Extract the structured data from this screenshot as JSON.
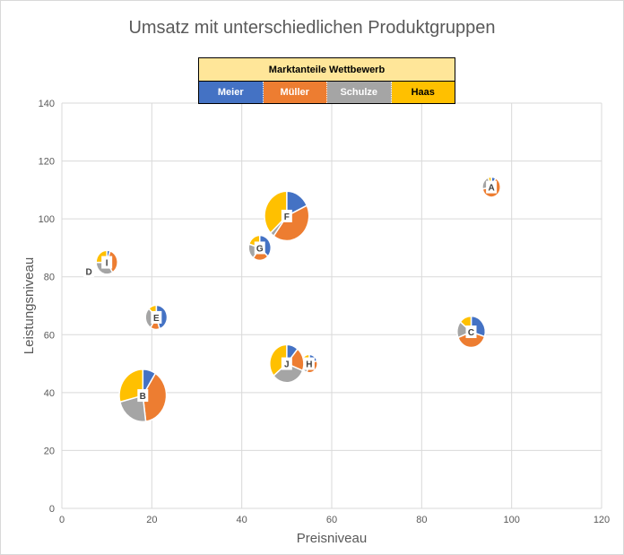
{
  "chart_data": {
    "type": "bubble-pie",
    "title": "Umsatz mit unterschiedlichen Produktgruppen",
    "xlabel": "Preisniveau",
    "ylabel": "Leistungsniveau",
    "xlim": [
      0,
      120
    ],
    "ylim": [
      0,
      140
    ],
    "xticks": [
      0,
      20,
      40,
      60,
      80,
      100,
      120
    ],
    "yticks": [
      0,
      20,
      40,
      60,
      80,
      100,
      120,
      140
    ],
    "grid": true,
    "legend": {
      "title": "Marktanteile Wettbewerb",
      "placement": "top-center",
      "entries": [
        {
          "name": "Meier",
          "color": "#4472c4"
        },
        {
          "name": "Müller",
          "color": "#ed7d31"
        },
        {
          "name": "Schulze",
          "color": "#a5a5a5"
        },
        {
          "name": "Haas",
          "color": "#ffc000"
        }
      ]
    },
    "series_order": [
      "Meier",
      "Müller",
      "Schulze",
      "Haas"
    ],
    "points": [
      {
        "label": "A",
        "x": 95.5,
        "y": 111,
        "size": 3.2,
        "shares": [
          8,
          64,
          22,
          6
        ]
      },
      {
        "label": "B",
        "x": 18,
        "y": 39,
        "size": 21.5,
        "shares": [
          9,
          39,
          23,
          29
        ]
      },
      {
        "label": "C",
        "x": 91,
        "y": 61,
        "size": 7.7,
        "shares": [
          30,
          39,
          17,
          14
        ]
      },
      {
        "label": "D",
        "x": 6,
        "y": 82,
        "size": 1.0,
        "shares": [
          22,
          24,
          26,
          28
        ]
      },
      {
        "label": "E",
        "x": 21,
        "y": 66,
        "size": 4.6,
        "shares": [
          45,
          14,
          29,
          12
        ]
      },
      {
        "label": "F",
        "x": 50,
        "y": 101,
        "size": 19.2,
        "shares": [
          18,
          42,
          3,
          37
        ]
      },
      {
        "label": "G",
        "x": 44,
        "y": 90,
        "size": 4.9,
        "shares": [
          37,
          23,
          20,
          20
        ]
      },
      {
        "label": "H",
        "x": 55,
        "y": 50,
        "size": 2.6,
        "shares": [
          20,
          35,
          20,
          25
        ]
      },
      {
        "label": "I",
        "x": 10,
        "y": 85,
        "size": 4.5,
        "shares": [
          5,
          36,
          34,
          25
        ]
      },
      {
        "label": "J",
        "x": 50,
        "y": 50,
        "size": 11.3,
        "shares": [
          11,
          20,
          33,
          36
        ]
      }
    ]
  }
}
